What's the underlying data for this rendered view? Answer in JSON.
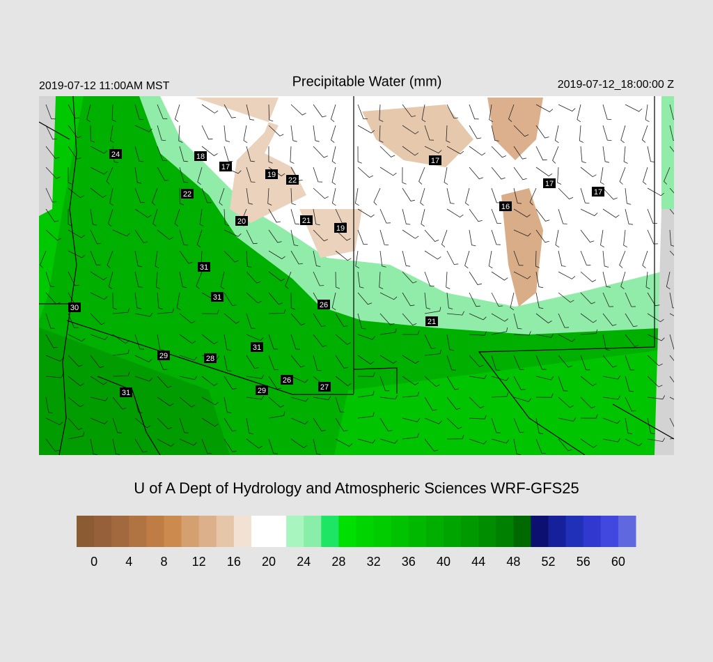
{
  "header": {
    "valid_local": "2019-07-12 11:00AM MST",
    "title": "Precipitable Water (mm)",
    "valid_utc": "2019-07-12_18:00:00 Z"
  },
  "station_labels": [
    24,
    18,
    17,
    19,
    22,
    22,
    17,
    17,
    17,
    16,
    20,
    21,
    19,
    31,
    31,
    26,
    30,
    21,
    31,
    29,
    28,
    26,
    27,
    29,
    31
  ],
  "footer": {
    "title": "U of A Dept of Hydrology and Atmospheric Sciences WRF-GFS25"
  },
  "colorbar": {
    "colors": [
      "#8b5c34",
      "#96613a",
      "#a2693e",
      "#b07342",
      "#bf7d45",
      "#cc8a4f",
      "#d4a070",
      "#dbb08a",
      "#e5c6a8",
      "#f2e2d4",
      "#ffffff",
      "#ffffff",
      "#a8f5c0",
      "#88eea8",
      "#1ee664",
      "#00e000",
      "#00d400",
      "#00cc00",
      "#00c200",
      "#00b800",
      "#00ae00",
      "#00a400",
      "#009a00",
      "#008e00",
      "#008000",
      "#006800",
      "#0c1070",
      "#15209a",
      "#2030b8",
      "#3038d0",
      "#4048e0",
      "#6068e0"
    ],
    "ticks": [
      0,
      4,
      8,
      12,
      16,
      20,
      24,
      28,
      32,
      36,
      40,
      44,
      48,
      52,
      56,
      60
    ]
  }
}
